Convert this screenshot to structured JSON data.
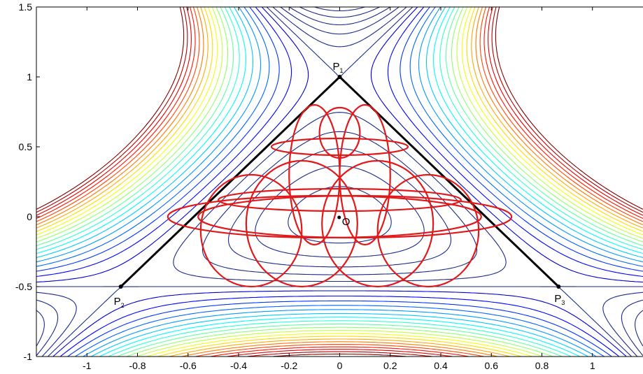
{
  "chart_data": {
    "type": "contour",
    "title": "",
    "xlabel": "",
    "ylabel": "",
    "xlim": [
      -1.2,
      1.2
    ],
    "ylim": [
      -1.0,
      1.5
    ],
    "x_ticks": [
      -1,
      -0.8,
      -0.6,
      -0.4,
      -0.2,
      0,
      0.2,
      0.4,
      0.6,
      0.8,
      1
    ],
    "x_tick_labels": [
      "-1",
      "-0.8",
      "-0.6",
      "-0.4",
      "-0.2",
      "0",
      "0.2",
      "0.4",
      "0.6",
      "0.8",
      "1"
    ],
    "y_ticks": [
      -1,
      -0.5,
      0,
      0.5,
      1,
      1.5
    ],
    "y_tick_labels": [
      "-1",
      "-0.5",
      "0",
      "0.5",
      "1",
      "1.5"
    ],
    "grid": false,
    "contour": {
      "function": "henon_heiles",
      "levels_low": [
        0.02,
        0.05,
        0.08,
        0.11,
        0.14
      ],
      "level_separatrix": 0.1667,
      "levels_high_start": 0.19,
      "levels_high_step": 0.032,
      "levels_high_count": 20,
      "colormap": "jet"
    },
    "triangle": {
      "vertices": [
        {
          "label": "P",
          "sub": "1",
          "x": 0,
          "y": 1
        },
        {
          "label": "P",
          "sub": "2",
          "x": -0.866,
          "y": -0.5
        },
        {
          "label": "P",
          "sub": "3",
          "x": 0.866,
          "y": -0.5
        }
      ],
      "color": "#000000"
    },
    "center_marker": {
      "label": "O",
      "x": 0.02,
      "y": -0.02
    },
    "trajectory": {
      "color": "#e01a1a",
      "petals": [
        {
          "cx": -0.06,
          "cy": 0.0,
          "rx": 0.62,
          "ry": 0.15
        },
        {
          "cx": 0.06,
          "cy": 0.0,
          "rx": 0.62,
          "ry": 0.15
        },
        {
          "cx": 0.0,
          "cy": 0.6,
          "rx": 0.08,
          "ry": 0.18
        },
        {
          "cx": -0.35,
          "cy": -0.1,
          "rx": 0.2,
          "ry": 0.4
        },
        {
          "cx": 0.35,
          "cy": -0.1,
          "rx": 0.2,
          "ry": 0.4
        },
        {
          "cx": -0.15,
          "cy": -0.05,
          "rx": 0.22,
          "ry": 0.45
        },
        {
          "cx": 0.15,
          "cy": -0.05,
          "rx": 0.22,
          "ry": 0.45
        },
        {
          "cx": 0.0,
          "cy": 0.5,
          "rx": 0.27,
          "ry": 0.06
        },
        {
          "cx": -0.1,
          "cy": 0.3,
          "rx": 0.1,
          "ry": 0.5
        },
        {
          "cx": 0.1,
          "cy": 0.3,
          "rx": 0.1,
          "ry": 0.5
        },
        {
          "cx": 0.0,
          "cy": 0.12,
          "rx": 0.48,
          "ry": 0.08
        }
      ]
    }
  }
}
